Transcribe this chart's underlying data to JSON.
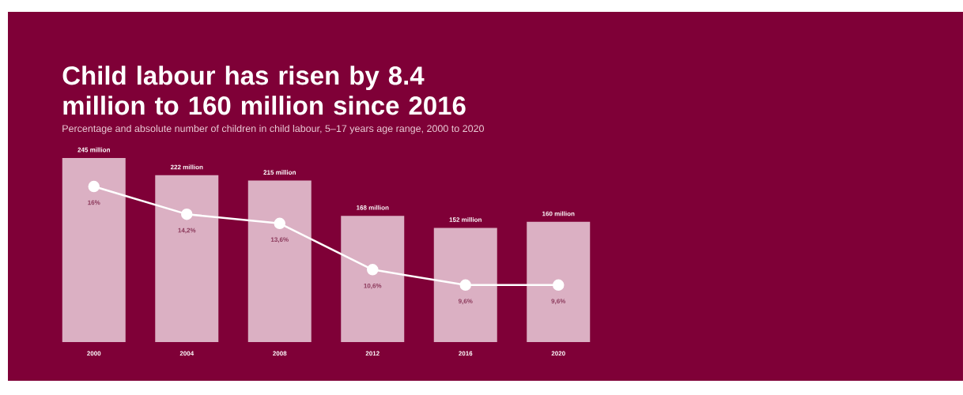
{
  "chart_data": {
    "type": "bar",
    "title": "Child labour has risen by 8.4 million to 160 million since 2016",
    "subtitle": "Percentage and absolute number of children in child labour, 5–17 years age range, 2000 to 2020",
    "categories": [
      "2000",
      "2004",
      "2008",
      "2012",
      "2016",
      "2020"
    ],
    "ylim": [
      0,
      245
    ],
    "y2lim": [
      5.9,
      17.85
    ],
    "tick_labels": "x",
    "marker": "circle",
    "series": [
      {
        "color": "#dbb0c3",
        "values": [
          245,
          222,
          215,
          168,
          152,
          160
        ],
        "value_labels": [
          "245 million",
          "222 million",
          "215 million",
          "168 million",
          "152 million",
          "160 million"
        ]
      },
      {
        "type": "line",
        "axis": "y2",
        "color": "#ffffff",
        "values": [
          16,
          14.2,
          13.6,
          10.6,
          9.6,
          9.6
        ],
        "value_labels": [
          "16%",
          "14,2%",
          "13,6%",
          "10,6%",
          "9,6%",
          "9,6%"
        ]
      }
    ]
  }
}
